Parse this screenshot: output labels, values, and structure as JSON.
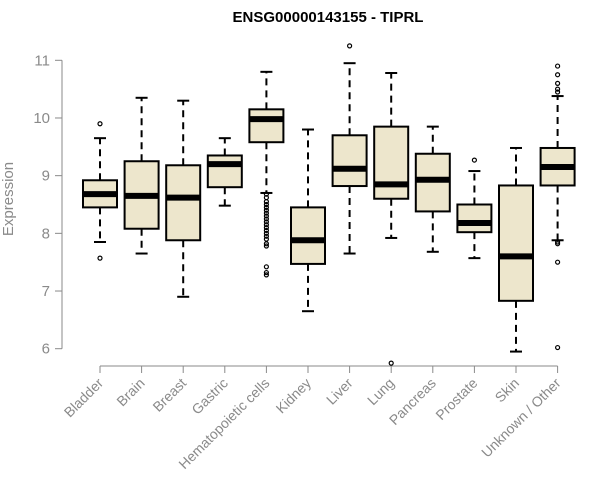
{
  "chart_data": {
    "type": "boxplot",
    "title": "ENSG00000143155 - TIPRL",
    "xlabel": "",
    "ylabel": "Expression",
    "ylim": [
      5.7,
      11.3
    ],
    "yticks": [
      6,
      7,
      8,
      9,
      10,
      11
    ],
    "colors": {
      "box_fill": "#ede6cc",
      "stroke": "#000000",
      "axis": "#8a8a8a"
    },
    "categories": [
      "Bladder",
      "Brain",
      "Breast",
      "Gastric",
      "Hematopoietic cells",
      "Kidney",
      "Liver",
      "Lung",
      "Pancreas",
      "Prostate",
      "Skin",
      "Unknown / Other"
    ],
    "boxes": [
      {
        "name": "Bladder",
        "whisker_low": 7.85,
        "q1": 8.45,
        "median": 8.68,
        "q3": 8.92,
        "whisker_high": 9.65,
        "outliers": [
          9.9,
          7.57
        ]
      },
      {
        "name": "Brain",
        "whisker_low": 7.65,
        "q1": 8.08,
        "median": 8.65,
        "q3": 9.25,
        "whisker_high": 10.35,
        "outliers": []
      },
      {
        "name": "Breast",
        "whisker_low": 6.9,
        "q1": 7.88,
        "median": 8.62,
        "q3": 9.18,
        "whisker_high": 10.3,
        "outliers": []
      },
      {
        "name": "Gastric",
        "whisker_low": 8.48,
        "q1": 8.8,
        "median": 9.2,
        "q3": 9.35,
        "whisker_high": 9.65,
        "outliers": []
      },
      {
        "name": "Hematopoietic cells",
        "whisker_low": 8.7,
        "q1": 9.58,
        "median": 9.98,
        "q3": 10.15,
        "whisker_high": 10.8,
        "outliers": [
          8.68,
          8.62,
          8.55,
          8.5,
          8.45,
          8.4,
          8.35,
          8.3,
          8.25,
          8.2,
          8.15,
          8.1,
          8.05,
          8.0,
          7.95,
          7.9,
          7.82,
          7.78,
          7.42,
          7.32,
          7.28
        ]
      },
      {
        "name": "Kidney",
        "whisker_low": 6.65,
        "q1": 7.47,
        "median": 7.88,
        "q3": 8.45,
        "whisker_high": 9.8,
        "outliers": []
      },
      {
        "name": "Liver",
        "whisker_low": 7.65,
        "q1": 8.82,
        "median": 9.12,
        "q3": 9.7,
        "whisker_high": 10.95,
        "outliers": [
          11.25
        ]
      },
      {
        "name": "Lung",
        "whisker_low": 7.92,
        "q1": 8.6,
        "median": 8.85,
        "q3": 9.85,
        "whisker_high": 10.78,
        "outliers": [
          5.75
        ]
      },
      {
        "name": "Pancreas",
        "whisker_low": 7.68,
        "q1": 8.38,
        "median": 8.93,
        "q3": 9.38,
        "whisker_high": 9.85,
        "outliers": []
      },
      {
        "name": "Prostate",
        "whisker_low": 7.57,
        "q1": 8.02,
        "median": 8.18,
        "q3": 8.5,
        "whisker_high": 9.08,
        "outliers": [
          9.27
        ]
      },
      {
        "name": "Skin",
        "whisker_low": 5.95,
        "q1": 6.83,
        "median": 7.6,
        "q3": 8.83,
        "whisker_high": 9.48,
        "outliers": []
      },
      {
        "name": "Unknown / Other",
        "whisker_low": 7.88,
        "q1": 8.83,
        "median": 9.15,
        "q3": 9.48,
        "whisker_high": 10.38,
        "outliers": [
          10.9,
          10.75,
          10.6,
          10.5,
          10.45,
          7.85,
          7.82,
          7.5,
          6.02
        ]
      }
    ]
  }
}
